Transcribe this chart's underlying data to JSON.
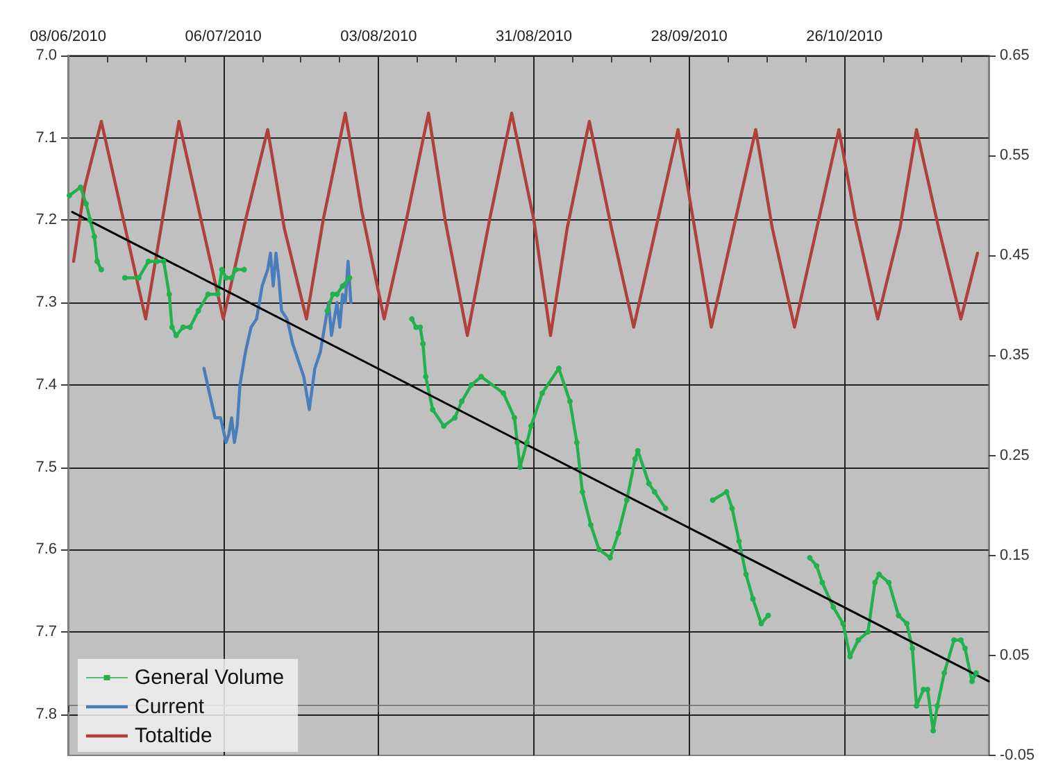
{
  "chart_data": {
    "type": "line",
    "xlim": [
      "2010-06-08",
      "2010-11-21"
    ],
    "xticks": [
      {
        "value": "2010-06-08",
        "label": "08/06/2010"
      },
      {
        "value": "2010-06-15",
        "label": null
      },
      {
        "value": "2010-06-22",
        "label": null
      },
      {
        "value": "2010-06-29",
        "label": null
      },
      {
        "value": "2010-07-06",
        "label": "06/07/2010"
      },
      {
        "value": "2010-07-13",
        "label": null
      },
      {
        "value": "2010-07-20",
        "label": null
      },
      {
        "value": "2010-07-27",
        "label": null
      },
      {
        "value": "2010-08-03",
        "label": "03/08/2010"
      },
      {
        "value": "2010-08-10",
        "label": null
      },
      {
        "value": "2010-08-17",
        "label": null
      },
      {
        "value": "2010-08-24",
        "label": null
      },
      {
        "value": "2010-08-31",
        "label": "31/08/2010"
      },
      {
        "value": "2010-09-07",
        "label": null
      },
      {
        "value": "2010-09-14",
        "label": null
      },
      {
        "value": "2010-09-21",
        "label": null
      },
      {
        "value": "2010-09-28",
        "label": "28/09/2010"
      },
      {
        "value": "2010-10-05",
        "label": null
      },
      {
        "value": "2010-10-12",
        "label": null
      },
      {
        "value": "2010-10-19",
        "label": null
      },
      {
        "value": "2010-10-26",
        "label": "26/10/2010"
      },
      {
        "value": "2010-11-02",
        "label": null
      },
      {
        "value": "2010-11-09",
        "label": null
      },
      {
        "value": "2010-11-16",
        "label": null
      }
    ],
    "ylim": [
      7.85,
      7.0
    ],
    "yticks": [
      {
        "value": 7.0,
        "label": "7.0"
      },
      7.1,
      7.2,
      7.3,
      7.4,
      7.5,
      7.6,
      7.7,
      7.8
    ],
    "y2lim": [
      -0.05,
      0.65
    ],
    "y2ticks": [
      0.65,
      0.55,
      0.45,
      0.35,
      0.25,
      0.15,
      0.05,
      -0.05
    ],
    "grid": true,
    "legend": "bottom left",
    "line_style": "solid",
    "series": [
      {
        "name": "General Volume",
        "color": "#22b14c",
        "marker": "circle",
        "x": [
          "2010-06-08T06:00",
          "2010-06-10T06:00",
          "2010-06-11T06:00",
          "2010-06-12T00:00",
          "2010-06-12T18:00",
          "2010-06-13T06:00",
          "2010-06-14T00:00",
          "2010-06-16T00:00",
          "2010-06-18T06:00",
          "2010-06-20T18:00",
          "2010-06-22T12:00",
          "2010-06-24T00:00",
          "2010-06-25T06:00",
          "2010-06-26T06:00",
          "2010-06-26T18:00",
          "2010-06-27T12:00",
          "2010-06-28T18:00",
          "2010-06-30T00:00",
          "2010-07-01T12:00",
          "2010-07-03T06:00",
          "2010-07-05T00:00",
          "2010-07-05T18:00",
          "2010-07-06T12:00",
          "2010-07-07T12:00",
          "2010-07-08T06:00",
          "2010-07-09T18:00",
          "2010-07-18T00:00",
          "2010-07-24T18:00",
          "2010-07-25T18:00",
          "2010-07-26T12:00",
          "2010-07-27T12:00",
          "2010-07-28T18:00",
          "2010-08-03T00:00",
          "2010-08-09T00:00",
          "2010-08-09T18:00",
          "2010-08-10T12:00",
          "2010-08-11T00:00",
          "2010-08-11T12:00",
          "2010-08-12T18:00",
          "2010-08-14T18:00",
          "2010-08-16T18:00",
          "2010-08-18T00:00",
          "2010-08-19T18:00",
          "2010-08-21T12:00",
          "2010-08-25T12:00",
          "2010-08-27T12:00",
          "2010-08-28T00:00",
          "2010-08-28T12:00",
          "2010-08-29T18:00",
          "2010-08-30T12:00",
          "2010-09-01T12:00",
          "2010-09-04T12:00",
          "2010-09-06T12:00",
          "2010-09-07T18:00",
          "2010-09-08T18:00",
          "2010-09-10T06:00",
          "2010-09-11T18:00",
          "2010-09-13T18:00",
          "2010-09-15T06:00",
          "2010-09-16T18:00",
          "2010-09-18T06:00",
          "2010-09-18T18:00",
          "2010-09-20T18:00",
          "2010-09-21T18:00",
          "2010-09-23T18:00",
          "2010-09-28T00:00",
          "2010-10-02T06:00",
          "2010-10-04T18:00",
          "2010-10-05T18:00",
          "2010-10-07T00:00",
          "2010-10-08T06:00",
          "2010-10-09T12:00",
          "2010-10-11T00:00",
          "2010-10-12T06:00",
          "2010-10-16T00:00",
          "2010-10-19T18:00",
          "2010-10-21T00:00",
          "2010-10-22T00:00",
          "2010-10-24T00:00",
          "2010-10-25T18:00",
          "2010-10-27T00:00",
          "2010-10-28T12:00",
          "2010-10-30T06:00",
          "2010-10-31T12:00",
          "2010-11-01T06:00",
          "2010-11-03T00:00",
          "2010-11-04T18:00",
          "2010-11-06T06:00",
          "2010-11-07T06:00",
          "2010-11-08T00:00",
          "2010-11-09T06:00",
          "2010-11-10T00:00",
          "2010-11-11T00:00",
          "2010-11-11T18:00",
          "2010-11-13T00:00",
          "2010-11-14T18:00",
          "2010-11-16T00:00",
          "2010-11-16T18:00",
          "2010-11-18T00:00",
          "2010-11-18T18:00"
        ],
        "values": [
          7.17,
          7.16,
          7.18,
          7.2,
          7.22,
          7.25,
          7.26,
          null,
          7.27,
          7.27,
          7.25,
          7.25,
          7.25,
          7.29,
          7.33,
          7.34,
          7.33,
          7.33,
          7.31,
          7.29,
          7.29,
          7.26,
          7.27,
          7.27,
          7.26,
          7.26,
          null,
          7.31,
          7.29,
          7.29,
          7.28,
          7.27,
          null,
          7.32,
          7.33,
          7.33,
          7.35,
          7.39,
          7.43,
          7.45,
          7.44,
          7.42,
          7.4,
          7.39,
          7.41,
          7.44,
          7.47,
          7.5,
          7.47,
          7.45,
          7.41,
          7.38,
          7.42,
          7.47,
          7.53,
          7.57,
          7.6,
          7.61,
          7.58,
          7.54,
          7.49,
          7.48,
          7.52,
          7.53,
          7.55,
          null,
          7.54,
          7.53,
          7.55,
          7.59,
          7.63,
          7.66,
          7.69,
          7.68,
          null,
          7.61,
          7.62,
          7.64,
          7.67,
          7.69,
          7.73,
          7.71,
          7.7,
          7.64,
          7.63,
          7.64,
          7.68,
          7.69,
          7.72,
          7.79,
          7.77,
          7.77,
          7.82,
          7.79,
          7.75,
          7.71,
          7.71,
          7.72,
          7.76,
          7.75
        ]
      },
      {
        "name": "Current",
        "color": "#4a7ebb",
        "marker": "none",
        "x": [
          "2010-07-02T12:00",
          "2010-07-03T12:00",
          "2010-07-04T12:00",
          "2010-07-05T12:00",
          "2010-07-06T12:00",
          "2010-07-07T00:00",
          "2010-07-07T12:00",
          "2010-07-08T00:00",
          "2010-07-08T12:00",
          "2010-07-09T00:00",
          "2010-07-10T00:00",
          "2010-07-11T00:00",
          "2010-07-12T00:00",
          "2010-07-13T00:00",
          "2010-07-14T00:00",
          "2010-07-14T12:00",
          "2010-07-15T00:00",
          "2010-07-15T12:00",
          "2010-07-16T00:00",
          "2010-07-16T12:00",
          "2010-07-17T12:00",
          "2010-07-18T12:00",
          "2010-07-19T12:00",
          "2010-07-20T12:00",
          "2010-07-21T12:00",
          "2010-07-22T12:00",
          "2010-07-23T12:00",
          "2010-07-24T12:00",
          "2010-07-25T00:00",
          "2010-07-25T12:00",
          "2010-07-26T12:00",
          "2010-07-27T00:00",
          "2010-07-27T12:00",
          "2010-07-28T00:00",
          "2010-07-28T12:00",
          "2010-07-29T00:00"
        ],
        "values": [
          7.38,
          7.41,
          7.44,
          7.44,
          7.47,
          7.46,
          7.44,
          7.47,
          7.45,
          7.4,
          7.36,
          7.33,
          7.32,
          7.28,
          7.26,
          7.24,
          7.28,
          7.24,
          7.27,
          7.31,
          7.32,
          7.35,
          7.37,
          7.39,
          7.43,
          7.38,
          7.36,
          7.32,
          7.3,
          7.34,
          7.3,
          7.33,
          7.29,
          7.3,
          7.25,
          7.3
        ]
      },
      {
        "name": "Totaltide",
        "color": "#b0403a",
        "marker": "none",
        "x": [
          "2010-06-09",
          "2010-06-11",
          "2010-06-14",
          "2010-06-18",
          "2010-06-22",
          "2010-06-25",
          "2010-06-28",
          "2010-07-02",
          "2010-07-06",
          "2010-07-10",
          "2010-07-14",
          "2010-07-17",
          "2010-07-21",
          "2010-07-24",
          "2010-07-28",
          "2010-07-31",
          "2010-08-04",
          "2010-08-08",
          "2010-08-12",
          "2010-08-15",
          "2010-08-19",
          "2010-08-23",
          "2010-08-27",
          "2010-08-31",
          "2010-09-03",
          "2010-09-06",
          "2010-09-10",
          "2010-09-14",
          "2010-09-18",
          "2010-09-22",
          "2010-09-26",
          "2010-09-29",
          "2010-10-02",
          "2010-10-06",
          "2010-10-10",
          "2010-10-13",
          "2010-10-17",
          "2010-10-21",
          "2010-10-25",
          "2010-10-28",
          "2010-11-01",
          "2010-11-05",
          "2010-11-08",
          "2010-11-12",
          "2010-11-16",
          "2010-11-19"
        ],
        "values": [
          7.25,
          7.16,
          7.08,
          7.2,
          7.32,
          7.2,
          7.08,
          7.2,
          7.32,
          7.2,
          7.09,
          7.21,
          7.32,
          7.2,
          7.07,
          7.19,
          7.32,
          7.2,
          7.07,
          7.2,
          7.34,
          7.2,
          7.07,
          7.2,
          7.34,
          7.21,
          7.08,
          7.21,
          7.33,
          7.21,
          7.09,
          7.21,
          7.33,
          7.21,
          7.09,
          7.21,
          7.33,
          7.21,
          7.09,
          7.2,
          7.32,
          7.21,
          7.09,
          7.21,
          7.32,
          7.24
        ]
      },
      {
        "type": "line",
        "color": "#000000",
        "marker": "none",
        "x": [
          "2010-06-08T18:00",
          "2010-11-21T00:00"
        ],
        "values": [
          7.19,
          7.76
        ]
      }
    ]
  }
}
